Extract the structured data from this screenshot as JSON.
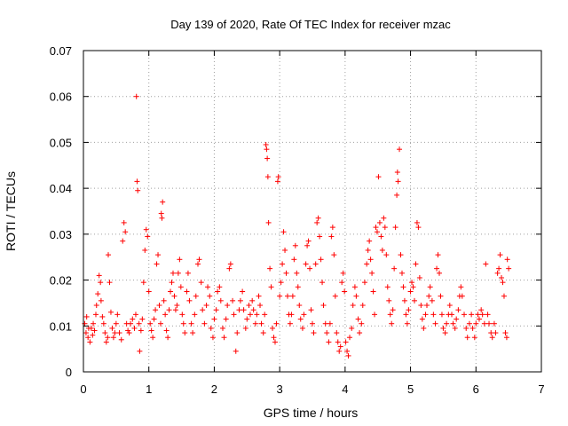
{
  "chart_data": {
    "type": "scatter",
    "title": "Day 139 of 2020, Rate Of TEC Index for receiver mzac",
    "xlabel": "GPS time / hours",
    "ylabel": "ROTI / TECUs",
    "xlim": [
      0,
      7
    ],
    "ylim": [
      0,
      0.07
    ],
    "xticks": [
      "0",
      "1",
      "2",
      "3",
      "4",
      "5",
      "6",
      "7"
    ],
    "yticks": [
      "0",
      "0.01",
      "0.02",
      "0.03",
      "0.04",
      "0.05",
      "0.06",
      "0.07"
    ],
    "grid": true,
    "marker": "+",
    "color": "#ff0000",
    "series": [
      {
        "name": "ROTI",
        "points": [
          [
            0.02,
            0.0105
          ],
          [
            0.04,
            0.0085
          ],
          [
            0.05,
            0.012
          ],
          [
            0.07,
            0.0075
          ],
          [
            0.08,
            0.0095
          ],
          [
            0.1,
            0.0065
          ],
          [
            0.12,
            0.0095
          ],
          [
            0.14,
            0.008
          ],
          [
            0.15,
            0.0105
          ],
          [
            0.17,
            0.009
          ],
          [
            0.19,
            0.0125
          ],
          [
            0.2,
            0.0145
          ],
          [
            0.22,
            0.017
          ],
          [
            0.24,
            0.021
          ],
          [
            0.26,
            0.0195
          ],
          [
            0.27,
            0.0155
          ],
          [
            0.29,
            0.012
          ],
          [
            0.31,
            0.0105
          ],
          [
            0.33,
            0.0085
          ],
          [
            0.35,
            0.0065
          ],
          [
            0.37,
            0.0075
          ],
          [
            0.38,
            0.0255
          ],
          [
            0.4,
            0.0195
          ],
          [
            0.42,
            0.013
          ],
          [
            0.44,
            0.0095
          ],
          [
            0.46,
            0.0075
          ],
          [
            0.48,
            0.0085
          ],
          [
            0.5,
            0.0105
          ],
          [
            0.52,
            0.0125
          ],
          [
            0.55,
            0.0085
          ],
          [
            0.58,
            0.007
          ],
          [
            0.6,
            0.0285
          ],
          [
            0.62,
            0.0325
          ],
          [
            0.64,
            0.0305
          ],
          [
            0.66,
            0.0105
          ],
          [
            0.68,
            0.009
          ],
          [
            0.7,
            0.0085
          ],
          [
            0.72,
            0.0105
          ],
          [
            0.75,
            0.0115
          ],
          [
            0.78,
            0.0095
          ],
          [
            0.8,
            0.0125
          ],
          [
            0.81,
            0.06
          ],
          [
            0.82,
            0.0415
          ],
          [
            0.83,
            0.0395
          ],
          [
            0.85,
            0.0105
          ],
          [
            0.86,
            0.0045
          ],
          [
            0.88,
            0.009
          ],
          [
            0.9,
            0.0115
          ],
          [
            0.92,
            0.0195
          ],
          [
            0.94,
            0.0265
          ],
          [
            0.96,
            0.031
          ],
          [
            0.98,
            0.0295
          ],
          [
            1.0,
            0.0175
          ],
          [
            1.02,
            0.0105
          ],
          [
            1.04,
            0.009
          ],
          [
            1.06,
            0.0075
          ],
          [
            1.08,
            0.0115
          ],
          [
            1.1,
            0.0135
          ],
          [
            1.12,
            0.0235
          ],
          [
            1.14,
            0.0255
          ],
          [
            1.16,
            0.0145
          ],
          [
            1.18,
            0.0105
          ],
          [
            1.19,
            0.0345
          ],
          [
            1.2,
            0.0335
          ],
          [
            1.21,
            0.037
          ],
          [
            1.23,
            0.0155
          ],
          [
            1.25,
            0.0125
          ],
          [
            1.27,
            0.009
          ],
          [
            1.29,
            0.0075
          ],
          [
            1.31,
            0.0135
          ],
          [
            1.33,
            0.0175
          ],
          [
            1.35,
            0.0195
          ],
          [
            1.37,
            0.0215
          ],
          [
            1.39,
            0.0165
          ],
          [
            1.41,
            0.0135
          ],
          [
            1.43,
            0.0145
          ],
          [
            1.45,
            0.0215
          ],
          [
            1.47,
            0.0245
          ],
          [
            1.49,
            0.0185
          ],
          [
            1.51,
            0.0125
          ],
          [
            1.53,
            0.0105
          ],
          [
            1.55,
            0.0085
          ],
          [
            1.58,
            0.0175
          ],
          [
            1.6,
            0.0215
          ],
          [
            1.62,
            0.0155
          ],
          [
            1.65,
            0.0105
          ],
          [
            1.67,
            0.0085
          ],
          [
            1.7,
            0.0125
          ],
          [
            1.72,
            0.0165
          ],
          [
            1.75,
            0.0235
          ],
          [
            1.77,
            0.0245
          ],
          [
            1.8,
            0.0195
          ],
          [
            1.82,
            0.0135
          ],
          [
            1.85,
            0.0105
          ],
          [
            1.88,
            0.0145
          ],
          [
            1.9,
            0.0185
          ],
          [
            1.93,
            0.0165
          ],
          [
            1.95,
            0.0095
          ],
          [
            1.98,
            0.0075
          ],
          [
            2.0,
            0.0115
          ],
          [
            2.03,
            0.0135
          ],
          [
            2.05,
            0.0175
          ],
          [
            2.08,
            0.0185
          ],
          [
            2.1,
            0.0155
          ],
          [
            2.13,
            0.0095
          ],
          [
            2.15,
            0.0075
          ],
          [
            2.18,
            0.0115
          ],
          [
            2.2,
            0.0145
          ],
          [
            2.23,
            0.0225
          ],
          [
            2.25,
            0.0235
          ],
          [
            2.28,
            0.0155
          ],
          [
            2.3,
            0.0125
          ],
          [
            2.33,
            0.0045
          ],
          [
            2.35,
            0.0085
          ],
          [
            2.38,
            0.0135
          ],
          [
            2.4,
            0.0155
          ],
          [
            2.43,
            0.0175
          ],
          [
            2.45,
            0.0135
          ],
          [
            2.48,
            0.0095
          ],
          [
            2.5,
            0.0115
          ],
          [
            2.53,
            0.0145
          ],
          [
            2.55,
            0.0125
          ],
          [
            2.58,
            0.0155
          ],
          [
            2.6,
            0.0135
          ],
          [
            2.63,
            0.0105
          ],
          [
            2.65,
            0.0125
          ],
          [
            2.68,
            0.0165
          ],
          [
            2.7,
            0.0145
          ],
          [
            2.72,
            0.0105
          ],
          [
            2.75,
            0.0085
          ],
          [
            2.77,
            0.0125
          ],
          [
            2.79,
            0.0495
          ],
          [
            2.8,
            0.0485
          ],
          [
            2.81,
            0.0465
          ],
          [
            2.82,
            0.0425
          ],
          [
            2.83,
            0.0325
          ],
          [
            2.85,
            0.0225
          ],
          [
            2.87,
            0.0185
          ],
          [
            2.89,
            0.0095
          ],
          [
            2.91,
            0.0075
          ],
          [
            2.93,
            0.0065
          ],
          [
            2.95,
            0.0105
          ],
          [
            2.97,
            0.0415
          ],
          [
            2.98,
            0.0425
          ],
          [
            3.0,
            0.0165
          ],
          [
            3.02,
            0.0195
          ],
          [
            3.04,
            0.0235
          ],
          [
            3.06,
            0.0305
          ],
          [
            3.08,
            0.0265
          ],
          [
            3.1,
            0.0215
          ],
          [
            3.12,
            0.0165
          ],
          [
            3.14,
            0.0125
          ],
          [
            3.16,
            0.0105
          ],
          [
            3.18,
            0.0125
          ],
          [
            3.2,
            0.0165
          ],
          [
            3.22,
            0.0245
          ],
          [
            3.24,
            0.0275
          ],
          [
            3.26,
            0.0215
          ],
          [
            3.28,
            0.0185
          ],
          [
            3.3,
            0.0145
          ],
          [
            3.32,
            0.0115
          ],
          [
            3.35,
            0.0095
          ],
          [
            3.37,
            0.0125
          ],
          [
            3.4,
            0.0235
          ],
          [
            3.42,
            0.0275
          ],
          [
            3.44,
            0.0285
          ],
          [
            3.46,
            0.0225
          ],
          [
            3.48,
            0.0135
          ],
          [
            3.5,
            0.0105
          ],
          [
            3.52,
            0.0085
          ],
          [
            3.55,
            0.0235
          ],
          [
            3.57,
            0.0325
          ],
          [
            3.59,
            0.0335
          ],
          [
            3.61,
            0.0295
          ],
          [
            3.63,
            0.0245
          ],
          [
            3.65,
            0.0195
          ],
          [
            3.67,
            0.0145
          ],
          [
            3.7,
            0.0105
          ],
          [
            3.72,
            0.0085
          ],
          [
            3.75,
            0.0065
          ],
          [
            3.77,
            0.0105
          ],
          [
            3.79,
            0.0295
          ],
          [
            3.81,
            0.0315
          ],
          [
            3.83,
            0.0255
          ],
          [
            3.85,
            0.0165
          ],
          [
            3.87,
            0.0085
          ],
          [
            3.89,
            0.0065
          ],
          [
            3.91,
            0.0045
          ],
          [
            3.93,
            0.0055
          ],
          [
            3.95,
            0.0195
          ],
          [
            3.97,
            0.0215
          ],
          [
            3.99,
            0.0175
          ],
          [
            4.01,
            0.0065
          ],
          [
            4.03,
            0.0045
          ],
          [
            4.05,
            0.0035
          ],
          [
            4.07,
            0.0075
          ],
          [
            4.1,
            0.0095
          ],
          [
            4.12,
            0.0145
          ],
          [
            4.15,
            0.0185
          ],
          [
            4.17,
            0.0165
          ],
          [
            4.2,
            0.0115
          ],
          [
            4.22,
            0.0085
          ],
          [
            4.25,
            0.0105
          ],
          [
            4.27,
            0.0145
          ],
          [
            4.3,
            0.0195
          ],
          [
            4.33,
            0.0235
          ],
          [
            4.35,
            0.0265
          ],
          [
            4.37,
            0.0285
          ],
          [
            4.39,
            0.0245
          ],
          [
            4.41,
            0.0215
          ],
          [
            4.43,
            0.0175
          ],
          [
            4.45,
            0.0125
          ],
          [
            4.47,
            0.0315
          ],
          [
            4.49,
            0.0305
          ],
          [
            4.51,
            0.0425
          ],
          [
            4.53,
            0.0325
          ],
          [
            4.55,
            0.0295
          ],
          [
            4.57,
            0.0265
          ],
          [
            4.59,
            0.0335
          ],
          [
            4.61,
            0.0315
          ],
          [
            4.63,
            0.0255
          ],
          [
            4.65,
            0.0185
          ],
          [
            4.67,
            0.0155
          ],
          [
            4.69,
            0.0125
          ],
          [
            4.71,
            0.0105
          ],
          [
            4.73,
            0.0135
          ],
          [
            4.75,
            0.0225
          ],
          [
            4.77,
            0.0315
          ],
          [
            4.79,
            0.0385
          ],
          [
            4.8,
            0.0435
          ],
          [
            4.81,
            0.0415
          ],
          [
            4.83,
            0.0485
          ],
          [
            4.85,
            0.0255
          ],
          [
            4.87,
            0.0215
          ],
          [
            4.89,
            0.0185
          ],
          [
            4.91,
            0.0155
          ],
          [
            4.93,
            0.0125
          ],
          [
            4.95,
            0.0105
          ],
          [
            4.97,
            0.0135
          ],
          [
            5.0,
            0.0175
          ],
          [
            5.02,
            0.0195
          ],
          [
            5.04,
            0.0185
          ],
          [
            5.06,
            0.0155
          ],
          [
            5.08,
            0.0235
          ],
          [
            5.1,
            0.0325
          ],
          [
            5.12,
            0.0315
          ],
          [
            5.14,
            0.0205
          ],
          [
            5.16,
            0.0145
          ],
          [
            5.18,
            0.0115
          ],
          [
            5.2,
            0.0095
          ],
          [
            5.23,
            0.0125
          ],
          [
            5.25,
            0.0145
          ],
          [
            5.28,
            0.0165
          ],
          [
            5.3,
            0.0185
          ],
          [
            5.33,
            0.0155
          ],
          [
            5.35,
            0.0125
          ],
          [
            5.38,
            0.0105
          ],
          [
            5.4,
            0.0225
          ],
          [
            5.42,
            0.0255
          ],
          [
            5.44,
            0.0215
          ],
          [
            5.46,
            0.0165
          ],
          [
            5.48,
            0.0125
          ],
          [
            5.5,
            0.0095
          ],
          [
            5.53,
            0.0085
          ],
          [
            5.55,
            0.0105
          ],
          [
            5.58,
            0.0125
          ],
          [
            5.6,
            0.0145
          ],
          [
            5.63,
            0.0125
          ],
          [
            5.65,
            0.0105
          ],
          [
            5.68,
            0.0095
          ],
          [
            5.7,
            0.0115
          ],
          [
            5.73,
            0.0135
          ],
          [
            5.75,
            0.0165
          ],
          [
            5.77,
            0.0185
          ],
          [
            5.79,
            0.0165
          ],
          [
            5.82,
            0.0125
          ],
          [
            5.85,
            0.0095
          ],
          [
            5.87,
            0.0075
          ],
          [
            5.9,
            0.0105
          ],
          [
            5.93,
            0.0125
          ],
          [
            5.95,
            0.0095
          ],
          [
            5.98,
            0.0075
          ],
          [
            6.0,
            0.0105
          ],
          [
            6.03,
            0.0125
          ],
          [
            6.05,
            0.0115
          ],
          [
            6.08,
            0.0135
          ],
          [
            6.1,
            0.0125
          ],
          [
            6.13,
            0.0105
          ],
          [
            6.15,
            0.0235
          ],
          [
            6.18,
            0.0125
          ],
          [
            6.2,
            0.0105
          ],
          [
            6.23,
            0.0085
          ],
          [
            6.25,
            0.0075
          ],
          [
            6.28,
            0.0105
          ],
          [
            6.3,
            0.0085
          ],
          [
            6.33,
            0.0215
          ],
          [
            6.35,
            0.0225
          ],
          [
            6.37,
            0.0255
          ],
          [
            6.39,
            0.0205
          ],
          [
            6.41,
            0.0195
          ],
          [
            6.43,
            0.0165
          ],
          [
            6.45,
            0.0085
          ],
          [
            6.47,
            0.0075
          ],
          [
            6.48,
            0.0245
          ],
          [
            6.5,
            0.0225
          ]
        ]
      }
    ]
  }
}
